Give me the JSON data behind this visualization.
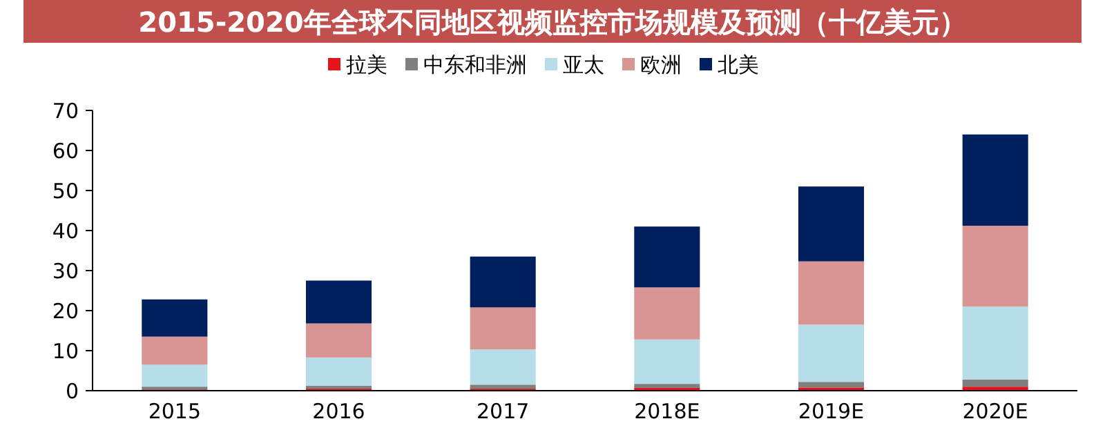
{
  "chart_data": {
    "type": "bar",
    "stacked": true,
    "title": "2015-2020年全球不同地区视频监控市场规模及预测（十亿美元）",
    "categories": [
      "2015",
      "2016",
      "2017",
      "2018E",
      "2019E",
      "2020E"
    ],
    "series": [
      {
        "name": "拉美",
        "color": "#e3141c",
        "values": [
          0.3,
          0.5,
          0.5,
          0.7,
          0.8,
          1.0
        ]
      },
      {
        "name": "中东和非洲",
        "color": "#7f7f7f",
        "values": [
          0.7,
          0.7,
          1.0,
          1.0,
          1.4,
          1.8
        ]
      },
      {
        "name": "亚太",
        "color": "#b7dde8",
        "values": [
          5.5,
          7.1,
          8.8,
          11.1,
          14.3,
          18.2
        ]
      },
      {
        "name": "欧洲",
        "color": "#d99594",
        "values": [
          7,
          8.5,
          10.5,
          13,
          15.8,
          20.2
        ]
      },
      {
        "name": "北美",
        "color": "#001f5f",
        "values": [
          9.3,
          10.7,
          12.7,
          15.2,
          18.7,
          22.8
        ]
      }
    ],
    "ylim": [
      0,
      70
    ],
    "yticks": [
      0,
      10,
      20,
      30,
      40,
      50,
      60,
      70
    ],
    "legend": "top",
    "grid": false
  }
}
